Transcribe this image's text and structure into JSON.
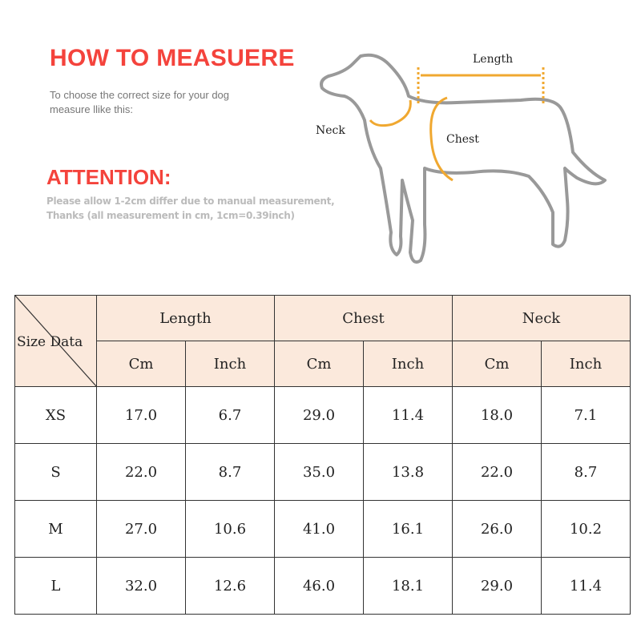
{
  "header": {
    "title": "HOW TO MEASUERE",
    "subtitle_line1": "To choose the correct size for your dog",
    "subtitle_line2": "measure llike this:"
  },
  "attention": {
    "title": "ATTENTION:",
    "line1": "Please allow 1-2cm differ due to manual measurement,",
    "line2": "Thanks (all measurement in cm, 1cm=0.39inch)"
  },
  "diagram": {
    "length": "Length",
    "neck": "Neck",
    "chest": "Chest",
    "accent": "#f0a830"
  },
  "table": {
    "corner_size": "Size",
    "corner_data": "Data",
    "groups": [
      "Length",
      "Chest",
      "Neck"
    ],
    "units": [
      "Cm",
      "Inch",
      "Cm",
      "Inch",
      "Cm",
      "Inch"
    ],
    "rows": [
      {
        "size": "XS",
        "values": [
          "17.0",
          "6.7",
          "29.0",
          "11.4",
          "18.0",
          "7.1"
        ]
      },
      {
        "size": "S",
        "values": [
          "22.0",
          "8.7",
          "35.0",
          "13.8",
          "22.0",
          "8.7"
        ]
      },
      {
        "size": "M",
        "values": [
          "27.0",
          "10.6",
          "41.0",
          "16.1",
          "26.0",
          "10.2"
        ]
      },
      {
        "size": "L",
        "values": [
          "32.0",
          "12.6",
          "46.0",
          "18.1",
          "29.0",
          "11.4"
        ]
      }
    ],
    "header_bg": "#fbe9dc"
  }
}
